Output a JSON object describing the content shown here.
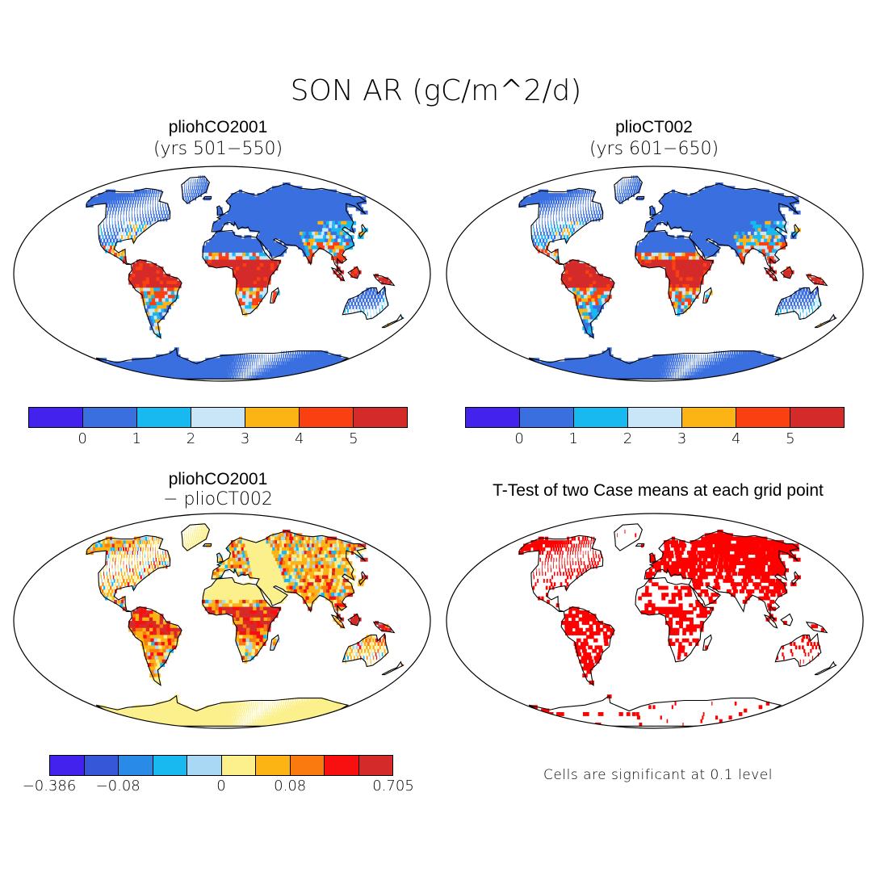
{
  "title": "SON AR (gC/m^2/d)",
  "panels": [
    {
      "title": "pliohCO2001",
      "subtitle": "(yrs 501−550)"
    },
    {
      "title": "plioCT002",
      "subtitle": "(yrs 601−650)"
    },
    {
      "title": "pliohCO2001",
      "subtitle": "− plioCT002"
    },
    {
      "title": "T-Test of two Case means at each grid point",
      "subtitle": ""
    }
  ],
  "colorbar_top": {
    "colors": [
      "#4422ee",
      "#3a6fe0",
      "#18b8f0",
      "#c8e6f8",
      "#fbb414",
      "#fa4010",
      "#d42a2a"
    ],
    "tick_labels": [
      "0",
      "1",
      "2",
      "3",
      "4",
      "5"
    ]
  },
  "colorbar_diff": {
    "colors": [
      "#4422ee",
      "#3658d8",
      "#2a8ae8",
      "#18b8f0",
      "#a8d8f4",
      "#fbf08c",
      "#fbb414",
      "#fa7a10",
      "#f81010",
      "#d42a2a"
    ],
    "tick_labels": [
      "−0.386",
      "−0.08",
      "0",
      "0.08",
      "0.705"
    ]
  },
  "significance_color": "#ff0000",
  "note": "Cells are significant at 0.1 level"
}
